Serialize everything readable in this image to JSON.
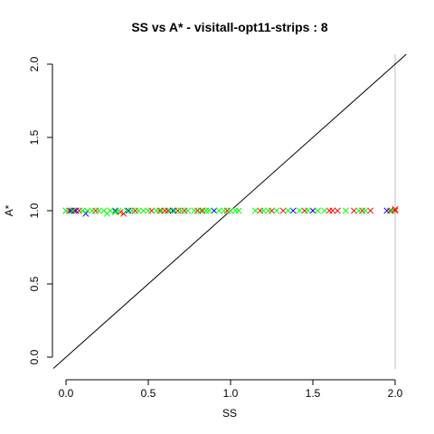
{
  "chart_data": {
    "type": "scatter",
    "title": "SS vs A* - visitall-opt11-strips : 8",
    "xlabel": "SS",
    "ylabel": "A*",
    "xlim": [
      0.0,
      2.0
    ],
    "ylim": [
      0.0,
      2.0
    ],
    "x_ticks": [
      "0.0",
      "0.5",
      "1.0",
      "1.5",
      "2.0"
    ],
    "y_ticks": [
      "0.0",
      "0.5",
      "1.0",
      "1.5",
      "2.0"
    ],
    "marker": "x",
    "reference_line": "y = x",
    "vertical_line_x": 2.0,
    "grid": false,
    "colors": {
      "red": "#ff0000",
      "green": "#00ff00",
      "blue": "#0000ff",
      "axis": "#000000",
      "vline": "#bebebe"
    },
    "series": [
      {
        "color": "red",
        "points": [
          [
            0.02,
            1.0
          ],
          [
            0.05,
            1.0
          ],
          [
            0.08,
            1.0
          ],
          [
            0.18,
            1.0
          ],
          [
            0.33,
            0.99
          ],
          [
            0.35,
            0.98
          ],
          [
            0.42,
            1.0
          ],
          [
            0.52,
            1.0
          ],
          [
            0.57,
            1.0
          ],
          [
            0.6,
            1.0
          ],
          [
            0.62,
            1.0
          ],
          [
            0.68,
            1.0
          ],
          [
            0.72,
            1.0
          ],
          [
            0.8,
            1.0
          ],
          [
            0.83,
            1.0
          ],
          [
            0.98,
            1.0
          ],
          [
            1.18,
            1.0
          ],
          [
            1.25,
            1.0
          ],
          [
            1.32,
            1.0
          ],
          [
            1.45,
            1.0
          ],
          [
            1.5,
            1.0
          ],
          [
            1.6,
            1.0
          ],
          [
            1.62,
            1.0
          ],
          [
            1.65,
            1.0
          ],
          [
            1.75,
            1.0
          ],
          [
            1.8,
            1.0
          ],
          [
            1.85,
            1.0
          ],
          [
            1.97,
            1.0
          ],
          [
            2.0,
            1.0
          ],
          [
            2.0,
            1.01
          ]
        ]
      },
      {
        "color": "blue",
        "points": [
          [
            0.0,
            1.0
          ],
          [
            0.03,
            1.0
          ],
          [
            0.06,
            1.0
          ],
          [
            0.12,
            0.98
          ],
          [
            0.3,
            1.0
          ],
          [
            0.38,
            1.0
          ],
          [
            0.65,
            1.0
          ],
          [
            0.9,
            1.0
          ],
          [
            1.38,
            1.0
          ],
          [
            1.5,
            1.0
          ],
          [
            1.95,
            1.0
          ]
        ]
      },
      {
        "color": "green",
        "points": [
          [
            0.0,
            1.0
          ],
          [
            0.04,
            1.0
          ],
          [
            0.1,
            1.0
          ],
          [
            0.13,
            1.0
          ],
          [
            0.16,
            1.0
          ],
          [
            0.2,
            1.0
          ],
          [
            0.23,
            1.0
          ],
          [
            0.25,
            0.98
          ],
          [
            0.27,
            1.0
          ],
          [
            0.3,
            0.99
          ],
          [
            0.32,
            1.0
          ],
          [
            0.37,
            1.0
          ],
          [
            0.4,
            1.0
          ],
          [
            0.44,
            1.0
          ],
          [
            0.47,
            1.0
          ],
          [
            0.5,
            1.0
          ],
          [
            0.55,
            1.0
          ],
          [
            0.58,
            1.0
          ],
          [
            0.63,
            1.0
          ],
          [
            0.66,
            1.0
          ],
          [
            0.7,
            1.0
          ],
          [
            0.74,
            1.0
          ],
          [
            0.78,
            1.0
          ],
          [
            0.82,
            1.0
          ],
          [
            0.85,
            1.0
          ],
          [
            0.87,
            1.0
          ],
          [
            0.93,
            1.0
          ],
          [
            0.96,
            1.0
          ],
          [
            1.0,
            1.0
          ],
          [
            1.03,
            1.0
          ],
          [
            1.05,
            1.0
          ],
          [
            1.15,
            1.0
          ],
          [
            1.2,
            1.0
          ],
          [
            1.23,
            1.0
          ],
          [
            1.28,
            1.0
          ],
          [
            1.35,
            1.0
          ],
          [
            1.42,
            1.0
          ],
          [
            1.47,
            1.0
          ],
          [
            1.53,
            1.0
          ],
          [
            1.57,
            1.0
          ],
          [
            1.7,
            1.0
          ],
          [
            1.78,
            1.0
          ],
          [
            1.82,
            1.0
          ],
          [
            1.98,
            1.0
          ]
        ]
      }
    ]
  }
}
